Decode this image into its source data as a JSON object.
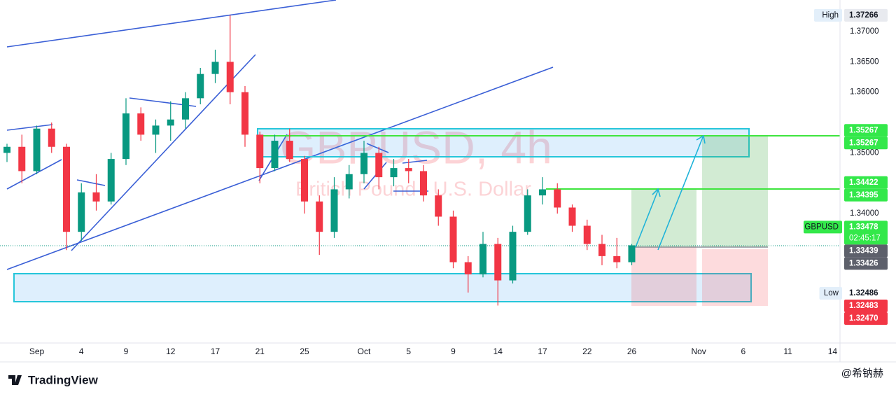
{
  "chart_data": {
    "type": "candlestick",
    "symbol_watermark": "GBPUSD, 4h",
    "description_watermark": "British Pound / U.S. Dollar",
    "brand": "TradingView",
    "credit": "@希钠赫",
    "up_color": "#089981",
    "down_color": "#f23645",
    "xlim": [
      -2,
      54
    ],
    "ylim": [
      1.31869,
      1.37518
    ],
    "xticks": [
      {
        "value": 0,
        "label": "Sep"
      },
      {
        "value": 3,
        "label": "4"
      },
      {
        "value": 6,
        "label": "9"
      },
      {
        "value": 9,
        "label": "12"
      },
      {
        "value": 12,
        "label": "17"
      },
      {
        "value": 15,
        "label": "21"
      },
      {
        "value": 18,
        "label": "25"
      },
      {
        "value": 22,
        "label": "Oct"
      },
      {
        "value": 25,
        "label": "5"
      },
      {
        "value": 28,
        "label": "9"
      },
      {
        "value": 31,
        "label": "14"
      },
      {
        "value": 34,
        "label": "17"
      },
      {
        "value": 37,
        "label": "22"
      },
      {
        "value": 40,
        "label": "26"
      },
      {
        "value": 44.5,
        "label": "Nov"
      },
      {
        "value": 47.5,
        "label": "6"
      },
      {
        "value": 50.5,
        "label": "11"
      },
      {
        "value": 53.5,
        "label": "14"
      }
    ],
    "yticks": [
      {
        "value": 1.37,
        "label": "1.37000"
      },
      {
        "value": 1.365,
        "label": "1.36500"
      },
      {
        "value": 1.36,
        "label": "1.36000"
      },
      {
        "value": 1.35,
        "label": "1.35000"
      },
      {
        "value": 1.34,
        "label": "1.34000"
      }
    ],
    "x": [
      -2,
      -1,
      0,
      1,
      2,
      3,
      4,
      5,
      6,
      7,
      8,
      9,
      10,
      11,
      12,
      13,
      14,
      15,
      16,
      17,
      18,
      19,
      20,
      21,
      22,
      23,
      24,
      25,
      26,
      27,
      28,
      29,
      30,
      31,
      32,
      33,
      34,
      35,
      36,
      37,
      38,
      39,
      40
    ],
    "open": [
      1.35,
      1.351,
      1.347,
      1.354,
      1.351,
      1.337,
      1.3435,
      1.342,
      1.349,
      1.3565,
      1.353,
      1.3545,
      1.3555,
      1.359,
      1.363,
      1.365,
      1.36,
      1.353,
      1.3475,
      1.352,
      1.349,
      1.342,
      1.337,
      1.344,
      1.3465,
      1.35,
      1.346,
      1.3475,
      1.347,
      1.343,
      1.3395,
      1.332,
      1.33,
      1.335,
      1.329,
      1.337,
      1.343,
      1.344,
      1.341,
      1.338,
      1.335,
      1.333,
      1.332
    ],
    "high": [
      1.3515,
      1.353,
      1.3545,
      1.355,
      1.3515,
      1.345,
      1.3465,
      1.35,
      1.359,
      1.3575,
      1.3555,
      1.3585,
      1.36,
      1.364,
      1.367,
      1.37266,
      1.361,
      1.3535,
      1.353,
      1.354,
      1.3495,
      1.343,
      1.346,
      1.348,
      1.352,
      1.351,
      1.349,
      1.349,
      1.348,
      1.344,
      1.3405,
      1.333,
      1.337,
      1.336,
      1.338,
      1.344,
      1.346,
      1.345,
      1.3415,
      1.339,
      1.3365,
      1.336,
      1.335
    ],
    "low": [
      1.3485,
      1.345,
      1.3465,
      1.35,
      1.334,
      1.3355,
      1.3405,
      1.3415,
      1.348,
      1.352,
      1.35,
      1.352,
      1.354,
      1.358,
      1.3615,
      1.358,
      1.351,
      1.345,
      1.347,
      1.3485,
      1.34,
      1.3332,
      1.336,
      1.3425,
      1.345,
      1.344,
      1.3445,
      1.345,
      1.342,
      1.338,
      1.331,
      1.327,
      1.3295,
      1.32486,
      1.3285,
      1.3365,
      1.3415,
      1.34,
      1.337,
      1.334,
      1.3315,
      1.331,
      1.3315
    ],
    "close": [
      1.351,
      1.347,
      1.354,
      1.351,
      1.337,
      1.3435,
      1.342,
      1.349,
      1.3565,
      1.353,
      1.3545,
      1.3555,
      1.359,
      1.363,
      1.365,
      1.36,
      1.353,
      1.3475,
      1.352,
      1.349,
      1.342,
      1.337,
      1.344,
      1.3465,
      1.35,
      1.346,
      1.3475,
      1.347,
      1.343,
      1.3395,
      1.332,
      1.33,
      1.335,
      1.329,
      1.337,
      1.343,
      1.344,
      1.341,
      1.338,
      1.335,
      1.333,
      1.332,
      1.33478
    ],
    "price_labels": [
      {
        "value": 1.37266,
        "label": "1.37266",
        "tag": "High",
        "color": "#e8eaef"
      },
      {
        "value": 1.35267,
        "label": "1.35267",
        "color": "#33e84a"
      },
      {
        "value": 1.35267,
        "label": "1.35267",
        "color": "#33e84a"
      },
      {
        "value": 1.34422,
        "label": "1.34422",
        "color": "#33e84a"
      },
      {
        "value": 1.34395,
        "label": "1.34395",
        "color": "#33e84a"
      },
      {
        "value": 1.33478,
        "label": "1.33478",
        "tag": "GBPUSD",
        "countdown": "02:45:17",
        "color": "#33e84a"
      },
      {
        "value": 1.33439,
        "label": "1.33439",
        "color": "#5d606b"
      },
      {
        "value": 1.33426,
        "label": "1.33426",
        "color": "#5d606b"
      },
      {
        "value": 1.32486,
        "label": "1.32486",
        "tag": "Low",
        "color": "#ffffff"
      },
      {
        "value": 1.32483,
        "label": "1.32483",
        "color": "#f23645"
      },
      {
        "value": 1.3247,
        "label": "1.32470",
        "color": "#f23645"
      }
    ]
  }
}
